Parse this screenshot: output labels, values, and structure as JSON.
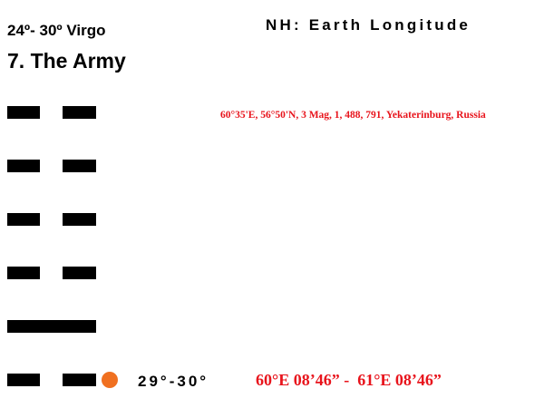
{
  "header": {
    "degrees": "24º- 30º Virgo",
    "section": "NH: Earth Longitude"
  },
  "title": "7. The Army",
  "note": "60°35'E, 56°50'N, 3 Mag, 1, 488, 791, Yekaterinburg, Russia",
  "footer": {
    "degree": "29°-30°",
    "range": "60°E 08’46” -  61°E 08’46”"
  }
}
